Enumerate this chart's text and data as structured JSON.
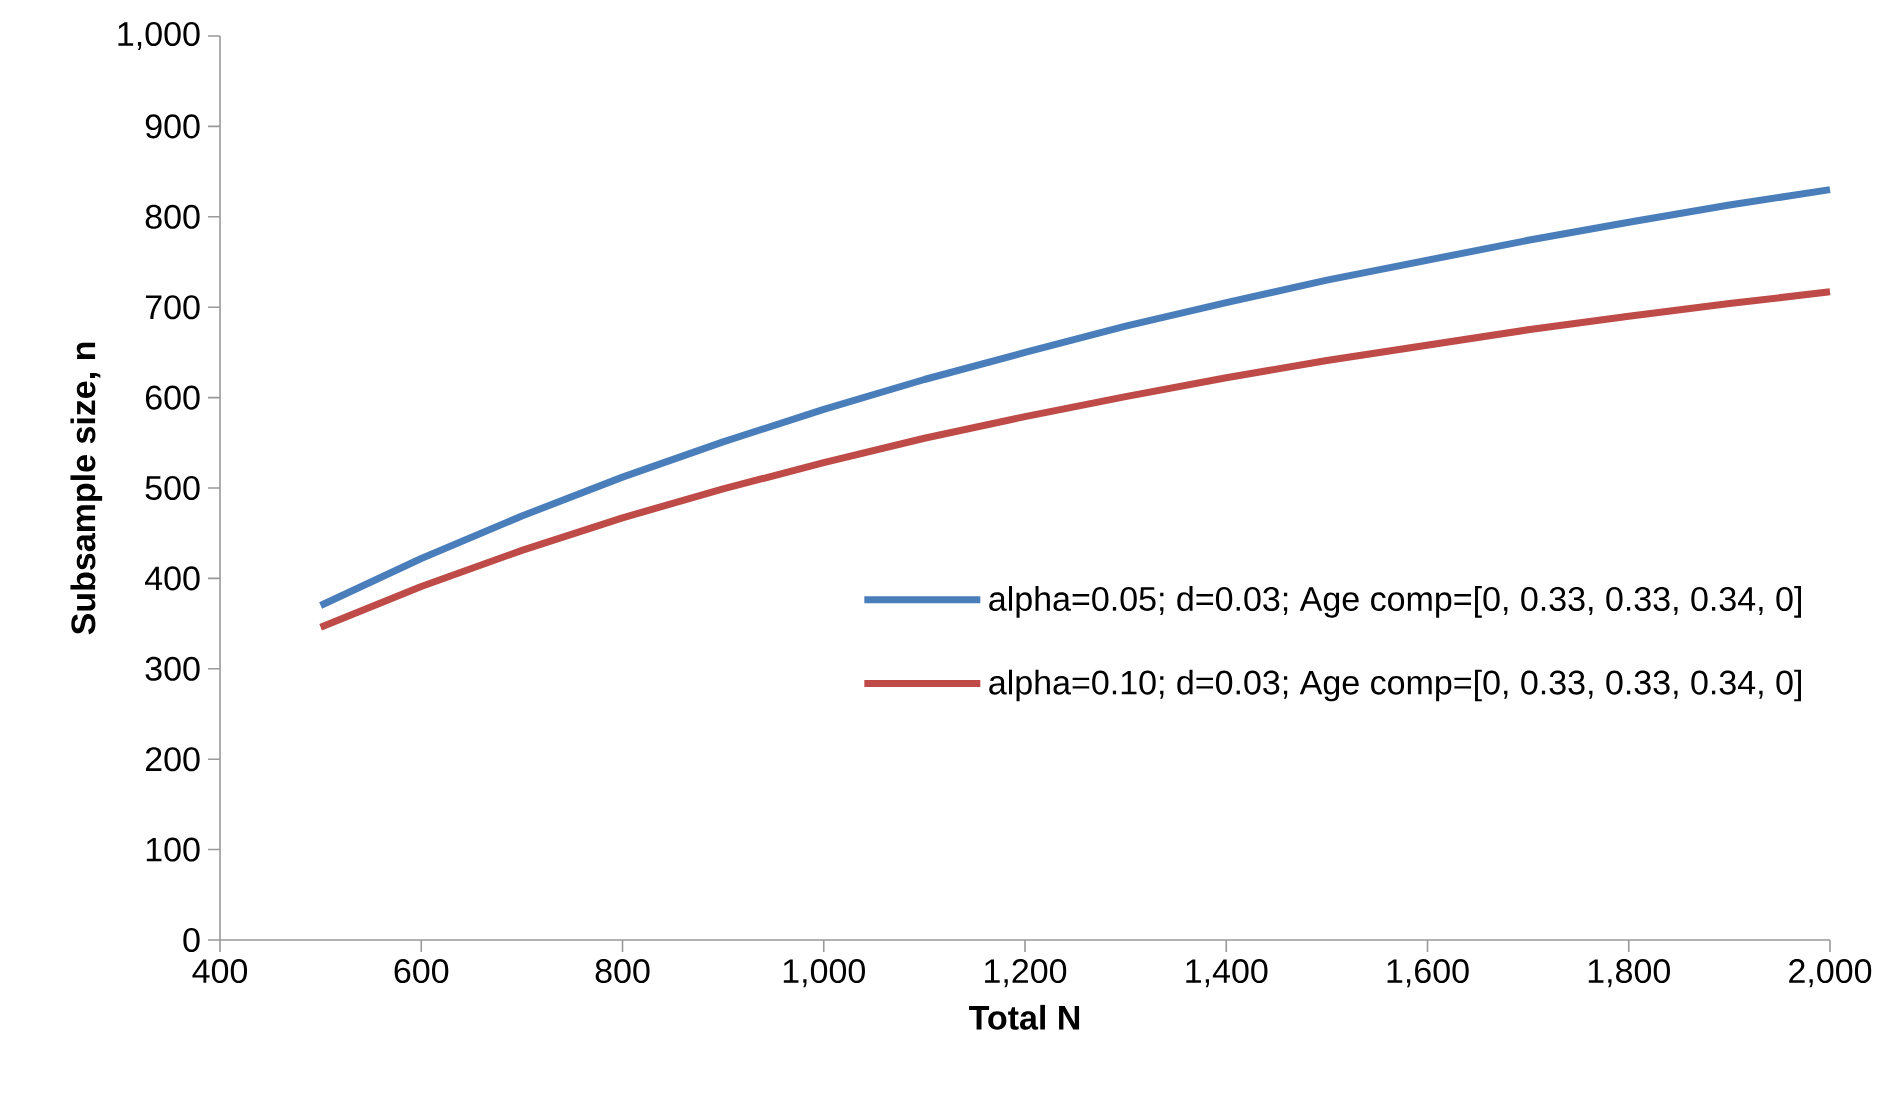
{
  "chart_data": {
    "type": "line",
    "xlabel": "Total N",
    "ylabel": "Subsample size, n",
    "x": [
      500,
      600,
      700,
      800,
      900,
      1000,
      1100,
      1200,
      1300,
      1400,
      1500,
      1600,
      1700,
      1800,
      1900,
      2000
    ],
    "series": [
      {
        "name": "alpha=0.05; d=0.03; Age comp=[0, 0.33, 0.33, 0.34, 0]",
        "color": "#4a7ebb",
        "values": [
          370,
          422,
          469,
          512,
          551,
          587,
          620,
          650,
          679,
          705,
          730,
          752,
          774,
          794,
          813,
          830
        ]
      },
      {
        "name": "alpha=0.10; d=0.03; Age comp=[0, 0.33, 0.33, 0.34, 0]",
        "color": "#be4b48",
        "values": [
          346,
          391,
          431,
          467,
          499,
          528,
          555,
          579,
          601,
          622,
          641,
          658,
          675,
          690,
          704,
          717
        ]
      }
    ],
    "xlim": [
      400,
      2000
    ],
    "xticks": [
      400,
      600,
      800,
      {
        "value": 1000,
        "label": "1,000"
      },
      {
        "value": 1200,
        "label": "1,200"
      },
      {
        "value": 1400,
        "label": "1,400"
      },
      {
        "value": 1600,
        "label": "1,600"
      },
      {
        "value": 1800,
        "label": "1,800"
      },
      {
        "value": 2000,
        "label": "2,000"
      }
    ],
    "ylim": [
      0,
      1000
    ],
    "yticks": [
      0,
      100,
      200,
      300,
      400,
      500,
      600,
      700,
      800,
      900,
      {
        "value": 1000,
        "label": "1,000"
      }
    ],
    "grid": false,
    "legend": "right",
    "marker": "none",
    "line_style": "solid"
  }
}
